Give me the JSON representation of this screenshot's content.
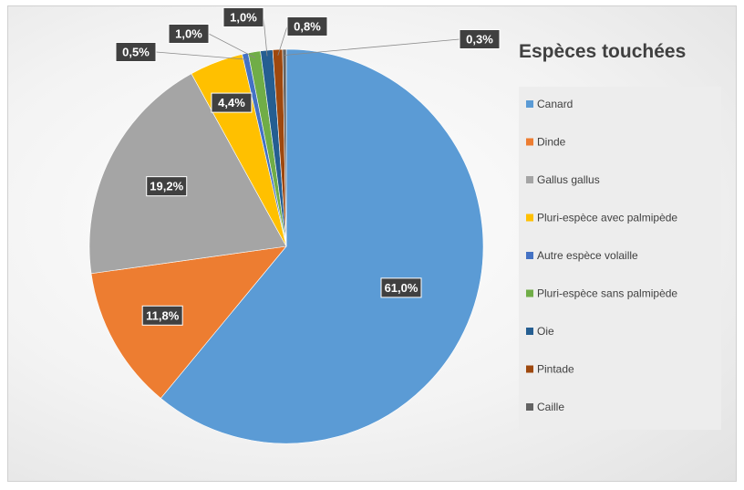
{
  "chart_data": {
    "type": "pie",
    "title": "Espèces touchées",
    "slices": [
      {
        "name": "Canard",
        "value": 61.0,
        "label": "61,0%",
        "color": "#5b9bd5"
      },
      {
        "name": "Dinde",
        "value": 11.8,
        "label": "11,8%",
        "color": "#ed7d31"
      },
      {
        "name": "Gallus gallus",
        "value": 19.2,
        "label": "19,2%",
        "color": "#a5a5a5"
      },
      {
        "name": "Pluri-espèce avec palmipède",
        "value": 4.4,
        "label": "4,4%",
        "color": "#ffc000"
      },
      {
        "name": "Autre espèce volaille",
        "value": 0.5,
        "label": "0,5%",
        "color": "#4472c4"
      },
      {
        "name": "Pluri-espèce sans palmipède",
        "value": 1.0,
        "label": "1,0%",
        "color": "#70ad47"
      },
      {
        "name": "Oie",
        "value": 1.0,
        "label": "1,0%",
        "color": "#255e91"
      },
      {
        "name": "Pintade",
        "value": 0.8,
        "label": "0,8%",
        "color": "#9e480e"
      },
      {
        "name": "Caille",
        "value": 0.3,
        "label": "0,3%",
        "color": "#636363"
      }
    ],
    "legend_position": "right"
  }
}
